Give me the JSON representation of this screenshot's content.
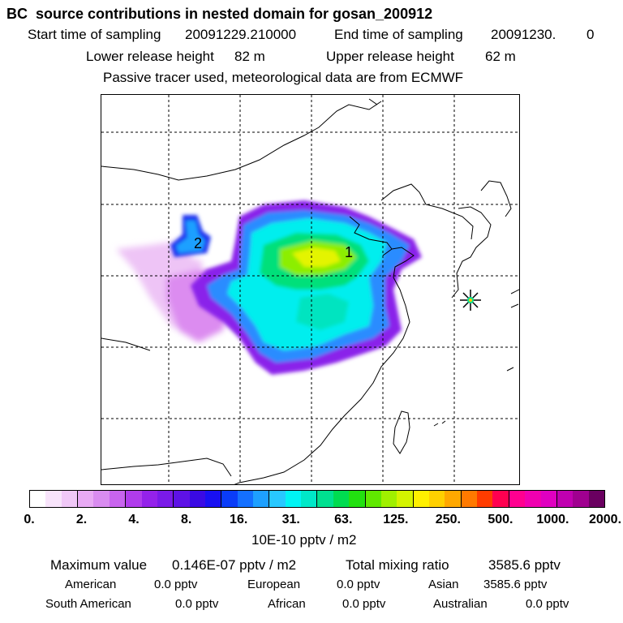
{
  "header": {
    "title": "BC  source contributions in nested domain for gosan_200912",
    "start_label": "Start time of sampling",
    "start_value": "20091229.210000",
    "end_label": "End time of sampling",
    "end_value": "20091230.",
    "end_value_tail": "0",
    "lower_label": "Lower release height",
    "lower_value": "82 m",
    "upper_label": "Upper release height",
    "upper_value": "62 m",
    "note": "Passive tracer used, meteorological data are from ECMWF"
  },
  "map": {
    "cluster_labels": [
      "1",
      "2"
    ],
    "receptor": "gosan",
    "receptor_icon": "star-marker-icon"
  },
  "colorbar": {
    "colors": [
      "#ffffff",
      "#f8e4fb",
      "#f0c8f7",
      "#e8aaf4",
      "#d98cf0",
      "#c864ee",
      "#b03cec",
      "#9422ea",
      "#7a1ae8",
      "#5e12e6",
      "#3a0ae4",
      "#1810f2",
      "#0a3cf8",
      "#1470ff",
      "#1ea0ff",
      "#28c8ff",
      "#00f4f4",
      "#00e8c8",
      "#00e090",
      "#00dc50",
      "#22e010",
      "#60e800",
      "#a0f000",
      "#d4f400",
      "#fff000",
      "#ffd000",
      "#ffa800",
      "#ff7a00",
      "#ff3c00",
      "#ff0050",
      "#ff0090",
      "#f000b0",
      "#e000c0",
      "#c000b0",
      "#a00090",
      "#6a0060"
    ],
    "tick_labels": [
      "0.",
      "2.",
      "4.",
      "8.",
      "16.",
      "31.",
      "63.",
      "125.",
      "250.",
      "500.",
      "1000.",
      "2000."
    ],
    "unit": "10E-10 pptv / m2"
  },
  "footer": {
    "max_label": "Maximum value",
    "max_value": "0.146E-07 pptv / m2",
    "total_label": "Total mixing ratio",
    "total_value": "3585.6 pptv",
    "regions": [
      {
        "name": "American",
        "value": "0.0 pptv"
      },
      {
        "name": "European",
        "value": "0.0 pptv"
      },
      {
        "name": "Asian",
        "value": "3585.6 pptv"
      },
      {
        "name": "South American",
        "value": "0.0 pptv"
      },
      {
        "name": "African",
        "value": "0.0 pptv"
      },
      {
        "name": "Australian",
        "value": "0.0 pptv"
      }
    ]
  }
}
